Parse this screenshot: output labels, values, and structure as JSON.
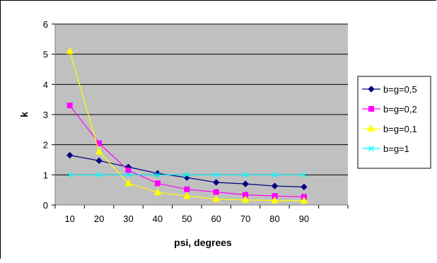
{
  "chart_data": {
    "type": "line",
    "xlabel": "psi, degrees",
    "ylabel": "k",
    "x": [
      10,
      20,
      30,
      40,
      50,
      60,
      70,
      80,
      90
    ],
    "x_ticks": [
      "10",
      "20",
      "30",
      "40",
      "50",
      "60",
      "70",
      "80",
      "90"
    ],
    "y_ticks": [
      "0",
      "1",
      "2",
      "3",
      "4",
      "5",
      "6"
    ],
    "ylim": [
      0,
      6
    ],
    "grid": true,
    "legend_position": "right",
    "plot_background": "#c0c0c0",
    "series": [
      {
        "name": "b=g=0,5",
        "color": "#000080",
        "marker": "diamond",
        "values": [
          1.65,
          1.47,
          1.26,
          1.05,
          0.91,
          0.75,
          0.7,
          0.63,
          0.6
        ]
      },
      {
        "name": "b=g=0,2",
        "color": "#ff00ff",
        "marker": "square",
        "values": [
          3.3,
          2.05,
          1.15,
          0.72,
          0.52,
          0.43,
          0.34,
          0.3,
          0.27
        ]
      },
      {
        "name": "b=g=0,1",
        "color": "#ffff00",
        "marker": "triangle",
        "values": [
          5.1,
          1.77,
          0.72,
          0.42,
          0.3,
          0.2,
          0.17,
          0.15,
          0.14
        ]
      },
      {
        "name": "b=g=1",
        "color": "#00ffff",
        "marker": "x",
        "values": [
          1.0,
          1.0,
          1.0,
          1.0,
          1.0,
          1.0,
          1.0,
          1.0,
          1.0
        ]
      }
    ]
  }
}
